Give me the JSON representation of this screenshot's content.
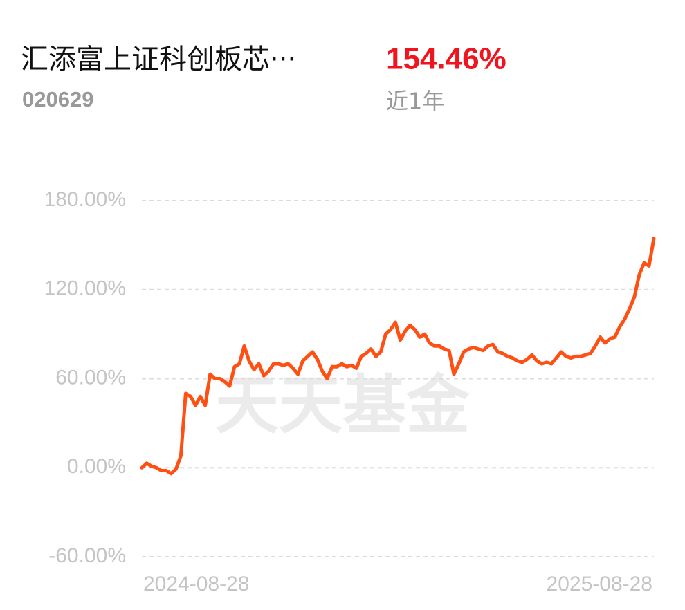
{
  "header": {
    "title": "汇添富上证科创板芯···",
    "code": "020629",
    "return": "154.46%",
    "period": "近1年"
  },
  "watermark": "天天基金",
  "chart_data": {
    "type": "line",
    "categories": [
      "2024-08-28",
      null,
      null,
      null,
      null,
      null,
      null,
      null,
      null,
      null,
      null,
      null,
      null,
      null,
      null,
      null,
      null,
      null,
      null,
      null,
      null,
      null,
      null,
      null,
      null,
      null,
      null,
      null,
      null,
      null,
      null,
      null,
      null,
      null,
      null,
      null,
      null,
      null,
      null,
      null,
      null,
      null,
      null,
      null,
      null,
      null,
      null,
      null,
      null,
      null,
      null,
      null,
      null,
      null,
      null,
      null,
      null,
      null,
      null,
      null,
      null,
      null,
      null,
      null,
      null,
      null,
      null,
      null,
      null,
      null,
      null,
      null,
      null,
      null,
      null,
      null,
      null,
      null,
      null,
      null,
      null,
      null,
      null,
      null,
      null,
      null,
      null,
      null,
      null,
      null,
      null,
      null,
      null,
      null,
      null,
      null,
      null,
      null,
      null,
      null,
      null,
      null,
      null,
      null,
      null,
      "2025-08-28"
    ],
    "series": [
      {
        "color": "#ff5014",
        "values": [
          0,
          3,
          1,
          0,
          -2,
          -2,
          -4,
          -1,
          8,
          50,
          48,
          42,
          48,
          42,
          63,
          60,
          60,
          58,
          55,
          68,
          70,
          82,
          72,
          66,
          70,
          62,
          65,
          70,
          70,
          69,
          70,
          67,
          63,
          72,
          75,
          78,
          73,
          65,
          60,
          68,
          68,
          70,
          68,
          69,
          67,
          75,
          77,
          80,
          75,
          78,
          90,
          93,
          98,
          86,
          92,
          96,
          93,
          88,
          90,
          84,
          82,
          82,
          80,
          79,
          63,
          70,
          78,
          80,
          81,
          80,
          79,
          82,
          83,
          78,
          77,
          75,
          74,
          72,
          71,
          73,
          76,
          72,
          70,
          71,
          70,
          74,
          78,
          75,
          74,
          75,
          75,
          76,
          77,
          82,
          88,
          84,
          87,
          88,
          95,
          100,
          107,
          115,
          130,
          138,
          136,
          154.46
        ]
      }
    ],
    "ylim": [
      -60,
      180
    ],
    "yticks": [
      {
        "value": -60,
        "label": "-60.00%"
      },
      {
        "value": 0,
        "label": "0.00%"
      },
      {
        "value": 60,
        "label": "60.00%"
      },
      {
        "value": 120,
        "label": "120.00%"
      },
      {
        "value": 180,
        "label": "180.00%"
      }
    ],
    "grid": true
  }
}
